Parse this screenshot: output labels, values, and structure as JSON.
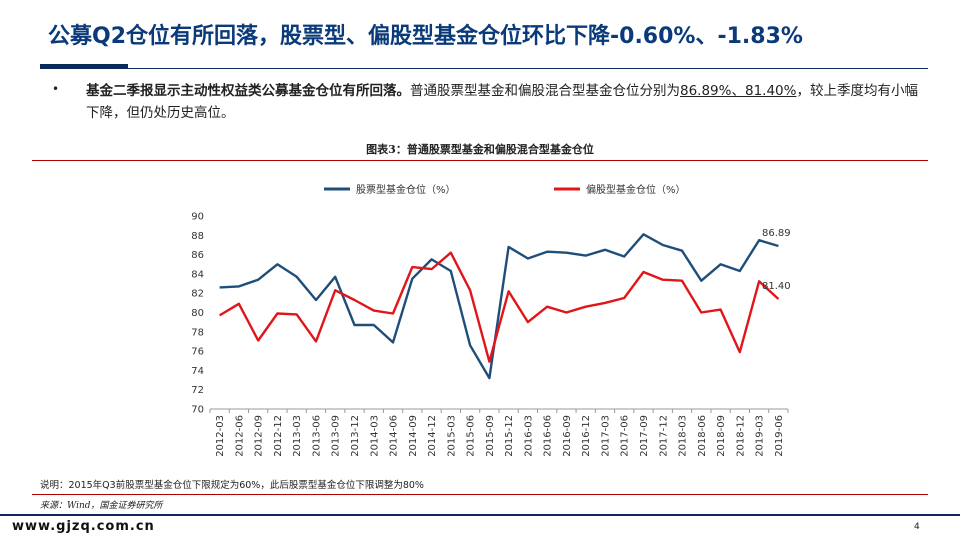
{
  "slide": {
    "title": "公募Q2仓位有所回落，股票型、偏股型基金仓位环比下降-0.60%、-1.83%",
    "bullet_dot": "•",
    "bullet_bold": "基金二季报显示主动性权益类公募基金仓位有所回落。",
    "bullet_normal_1": "普通股票型基金和偏股混合型基金仓位分别为",
    "bullet_underline": "86.89%、81.40%",
    "bullet_normal_2": "，较上季度均有小幅下降，但仍处历史高位。",
    "figure_caption": "图表3：普通股票型基金和偏股混合型基金仓位",
    "note": "说明：2015年Q3前股票型基金仓位下限规定为60%，此后股票型基金仓位下限调整为80%",
    "source": "来源：Wind，国金证券研究所",
    "footer_url": "www.gjzq.com.cn",
    "page_number": "4"
  },
  "colors": {
    "title": "#0a3a7a",
    "series_stock": "#1f4e79",
    "series_mixed": "#e0161b",
    "rule_red": "#b00000",
    "footer_bar": "#0a2a5c"
  },
  "chart_data": {
    "type": "line",
    "title": "",
    "xlabel": "",
    "ylabel": "",
    "ylim": [
      70,
      90
    ],
    "y_ticks": [
      70,
      72,
      74,
      76,
      78,
      80,
      82,
      84,
      86,
      88,
      90
    ],
    "grid": false,
    "legend_position": "top",
    "categories": [
      "2012-03",
      "2012-06",
      "2012-09",
      "2012-12",
      "2013-03",
      "2013-06",
      "2013-09",
      "2013-12",
      "2014-03",
      "2014-06",
      "2014-09",
      "2014-12",
      "2015-03",
      "2015-06",
      "2015-09",
      "2015-12",
      "2016-03",
      "2016-06",
      "2016-09",
      "2016-12",
      "2017-03",
      "2017-06",
      "2017-09",
      "2017-12",
      "2018-03",
      "2018-06",
      "2018-09",
      "2018-12",
      "2019-03",
      "2019-06"
    ],
    "series": [
      {
        "name": "股票型基金仓位（%）",
        "color": "#1f4e79",
        "values": [
          82.6,
          82.7,
          83.4,
          85.0,
          83.7,
          81.3,
          83.7,
          78.7,
          78.7,
          76.9,
          83.5,
          85.5,
          84.3,
          76.6,
          73.2,
          86.8,
          85.6,
          86.3,
          86.2,
          85.9,
          86.5,
          85.8,
          88.1,
          87.0,
          86.4,
          83.3,
          85.0,
          84.3,
          87.49,
          86.89
        ],
        "end_label": "86.89"
      },
      {
        "name": "偏股型基金仓位（%）",
        "color": "#e0161b",
        "values": [
          79.7,
          80.9,
          77.1,
          79.9,
          79.8,
          77.0,
          82.3,
          81.3,
          80.2,
          79.9,
          84.7,
          84.5,
          86.2,
          82.3,
          74.9,
          82.2,
          79.0,
          80.6,
          80.0,
          80.6,
          81.0,
          81.5,
          84.2,
          83.4,
          83.3,
          80.0,
          80.3,
          75.9,
          83.23,
          81.4
        ],
        "end_label": "81.40"
      }
    ]
  }
}
